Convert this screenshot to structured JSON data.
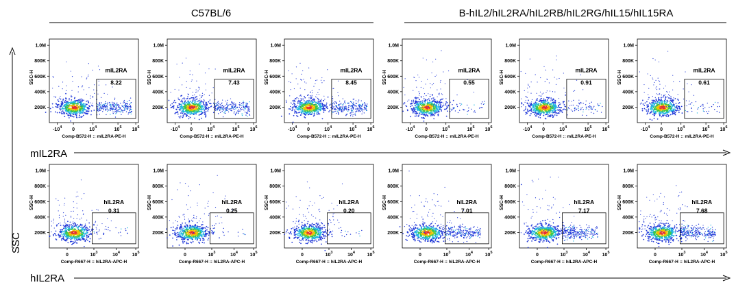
{
  "chart_data": {
    "type": "scatter",
    "subtype": "flow-cytometry-pseudocolor-dot-plot",
    "groups": [
      "C57BL/6",
      "B-hIL2/hIL2RA/hIL2RB/hIL2RG/hIL15/hIL15RA"
    ],
    "x_axis_arrow_labels": [
      "mIL2RA",
      "hIL2RA"
    ],
    "y_axis_arrow_label": "SSC",
    "rows": [
      {
        "marker": "mIL2RA",
        "xlabel": "Comp-B572-H :: mIL2RA-PE-H",
        "ylabel": "SSC-H",
        "xticks": [
          {
            "b": "-10",
            "e": "4"
          },
          {
            "b": "0",
            "e": ""
          },
          {
            "b": "10",
            "e": "4"
          },
          {
            "b": "10",
            "e": "5"
          },
          {
            "b": "10",
            "e": "6"
          }
        ],
        "gate_label": "mIL2RA",
        "plots": [
          {
            "group": "C57BL/6",
            "gate_percent": "8.22"
          },
          {
            "group": "C57BL/6",
            "gate_percent": "7.43"
          },
          {
            "group": "C57BL/6",
            "gate_percent": "8.45"
          },
          {
            "group": "B-hIL2/hIL2RA/hIL2RB/hIL2RG/hIL15/hIL15RA",
            "gate_percent": "0.55"
          },
          {
            "group": "B-hIL2/hIL2RA/hIL2RB/hIL2RG/hIL15/hIL15RA",
            "gate_percent": "0.91"
          },
          {
            "group": "B-hIL2/hIL2RA/hIL2RB/hIL2RG/hIL15/hIL15RA",
            "gate_percent": "0.61"
          }
        ]
      },
      {
        "marker": "hIL2RA",
        "xlabel": "Comp-R667-H :: hIL2RA-APC-H",
        "ylabel": "SSC-H",
        "xticks": [
          {
            "b": "0",
            "e": ""
          },
          {
            "b": "10",
            "e": "3"
          },
          {
            "b": "10",
            "e": "4"
          },
          {
            "b": "10",
            "e": "5"
          }
        ],
        "gate_label": "hIL2RA",
        "plots": [
          {
            "group": "C57BL/6",
            "gate_percent": "0.31"
          },
          {
            "group": "C57BL/6",
            "gate_percent": "0.25"
          },
          {
            "group": "C57BL/6",
            "gate_percent": "0.20"
          },
          {
            "group": "B-hIL2/hIL2RA/hIL2RB/hIL2RG/hIL15/hIL15RA",
            "gate_percent": "7.01"
          },
          {
            "group": "B-hIL2/hIL2RA/hIL2RB/hIL2RG/hIL15/hIL15RA",
            "gate_percent": "7.17"
          },
          {
            "group": "B-hIL2/hIL2RA/hIL2RB/hIL2RG/hIL15/hIL15RA",
            "gate_percent": "7.68"
          }
        ]
      }
    ],
    "yticks": [
      "200K",
      "400K",
      "600K",
      "800K",
      "1.0M"
    ],
    "ylim": [
      0,
      1100000
    ]
  }
}
